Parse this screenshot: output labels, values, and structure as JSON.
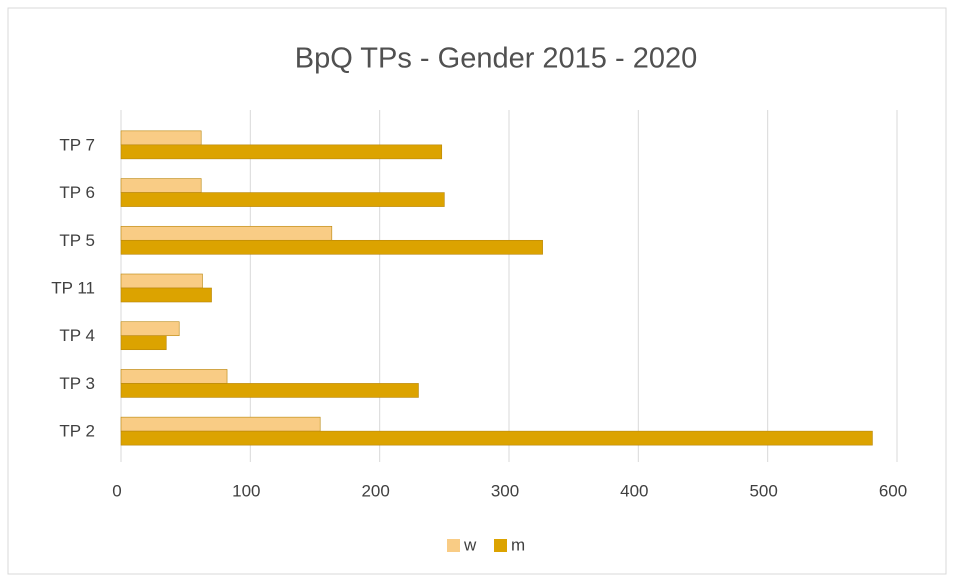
{
  "chart_data": {
    "type": "hbar",
    "title": "BpQ TPs - Gender 2015 - 2020",
    "categories": [
      "TP 2",
      "TP 3",
      "TP 4",
      "TP 11",
      "TP 5",
      "TP 6",
      "TP 7"
    ],
    "series": [
      {
        "name": "w",
        "color": "#f9cc85",
        "values": [
          154,
          82,
          45,
          63,
          163,
          62,
          62
        ]
      },
      {
        "name": "m",
        "color": "#dca300",
        "values": [
          581,
          230,
          35,
          70,
          326,
          250,
          248
        ]
      }
    ],
    "xlim": [
      0,
      600
    ],
    "xticks": [
      0,
      100,
      200,
      300,
      400,
      500,
      600
    ],
    "grid": true,
    "legend": "bottom"
  }
}
